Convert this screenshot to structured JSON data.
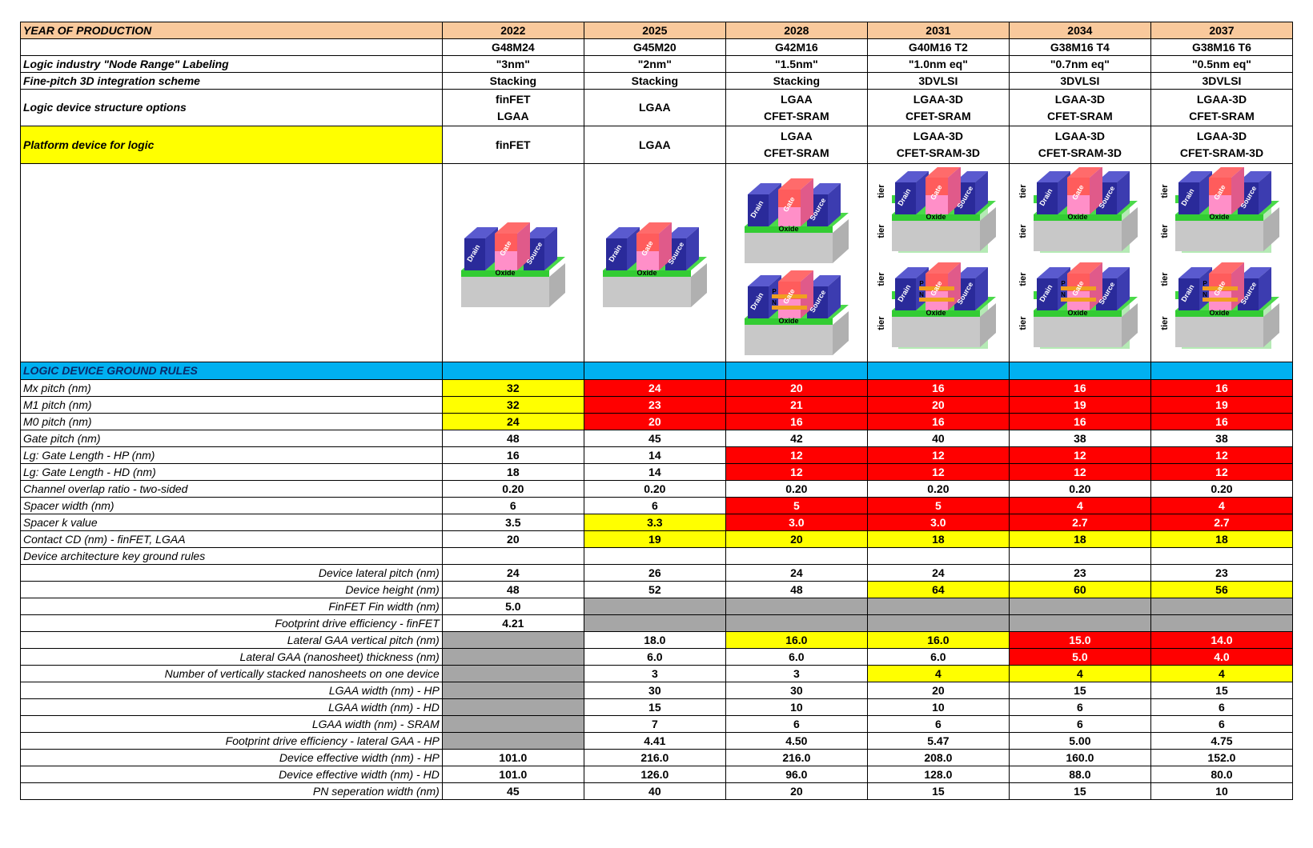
{
  "header": {
    "title": "YEAR OF PRODUCTION",
    "years": [
      "2022",
      "2025",
      "2028",
      "2031",
      "2034",
      "2037"
    ]
  },
  "top_rows": [
    {
      "label": "",
      "values": [
        "G48M24",
        "G45M20",
        "G42M16",
        "G40M16 T2",
        "G38M16 T4",
        "G38M16 T6"
      ]
    },
    {
      "label": "Logic industry \"Node Range\" Labeling",
      "values": [
        "\"3nm\"",
        "\"2nm\"",
        "\"1.5nm\"",
        "\"1.0nm eq\"",
        "\"0.7nm eq\"",
        "\"0.5nm eq\""
      ]
    },
    {
      "label": "Fine-pitch 3D integration scheme",
      "values": [
        "Stacking",
        "Stacking",
        "Stacking",
        "3DVLSI",
        "3DVLSI",
        "3DVLSI"
      ]
    },
    {
      "label": "Logic device structure options",
      "values": [
        [
          "finFET",
          "LGAA"
        ],
        [
          "LGAA"
        ],
        [
          "LGAA",
          "CFET-SRAM"
        ],
        [
          "LGAA-3D",
          "CFET-SRAM"
        ],
        [
          "LGAA-3D",
          "CFET-SRAM"
        ],
        [
          "LGAA-3D",
          "CFET-SRAM"
        ]
      ]
    },
    {
      "label": "Platform device for logic",
      "values": [
        [
          "finFET"
        ],
        [
          "LGAA"
        ],
        [
          "LGAA",
          "CFET-SRAM"
        ],
        [
          "LGAA-3D",
          "CFET-SRAM-3D"
        ],
        [
          "LGAA-3D",
          "CFET-SRAM-3D"
        ],
        [
          "LGAA-3D",
          "CFET-SRAM-3D"
        ]
      ]
    }
  ],
  "device_labels": {
    "drain": "Drain",
    "gate": "Gate",
    "source": "Source",
    "oxide": "Oxide",
    "tier": "tier",
    "p": "P",
    "n": "N"
  },
  "section_title": "LOGIC DEVICE GROUND RULES",
  "colors": {
    "header": "#f9c99c",
    "section": "#00b0f0",
    "yellow": "#ffff00",
    "red": "#ff0000",
    "gray": "#a6a6a6"
  },
  "rule_rows": [
    {
      "label": "Mx pitch (nm)",
      "align": "left",
      "values": [
        "32",
        "24",
        "20",
        "16",
        "16",
        "16"
      ],
      "colors": [
        "y",
        "r",
        "r",
        "r",
        "r",
        "r"
      ]
    },
    {
      "label": "M1 pitch (nm)",
      "align": "left",
      "values": [
        "32",
        "23",
        "21",
        "20",
        "19",
        "19"
      ],
      "colors": [
        "y",
        "r",
        "r",
        "r",
        "r",
        "r"
      ]
    },
    {
      "label": "M0 pitch (nm)",
      "align": "left",
      "values": [
        "24",
        "20",
        "16",
        "16",
        "16",
        "16"
      ],
      "colors": [
        "y",
        "r",
        "r",
        "r",
        "r",
        "r"
      ]
    },
    {
      "label": "Gate pitch (nm)",
      "align": "left",
      "values": [
        "48",
        "45",
        "42",
        "40",
        "38",
        "38"
      ],
      "colors": [
        "",
        "",
        "",
        "",
        "",
        ""
      ]
    },
    {
      "label": "Lg: Gate Length - HP (nm)",
      "align": "left",
      "values": [
        "16",
        "14",
        "12",
        "12",
        "12",
        "12"
      ],
      "colors": [
        "",
        "",
        "r",
        "r",
        "r",
        "r"
      ]
    },
    {
      "label": "Lg: Gate Length - HD (nm)",
      "align": "left",
      "values": [
        "18",
        "14",
        "12",
        "12",
        "12",
        "12"
      ],
      "colors": [
        "",
        "",
        "r",
        "r",
        "r",
        "r"
      ]
    },
    {
      "label": "Channel overlap ratio - two-sided",
      "align": "left",
      "values": [
        "0.20",
        "0.20",
        "0.20",
        "0.20",
        "0.20",
        "0.20"
      ],
      "colors": [
        "",
        "",
        "",
        "",
        "",
        ""
      ]
    },
    {
      "label": "Spacer width (nm)",
      "align": "left",
      "values": [
        "6",
        "6",
        "5",
        "5",
        "4",
        "4"
      ],
      "colors": [
        "",
        "",
        "r",
        "r",
        "r",
        "r"
      ]
    },
    {
      "label": "Spacer k value",
      "align": "left",
      "values": [
        "3.5",
        "3.3",
        "3.0",
        "3.0",
        "2.7",
        "2.7"
      ],
      "colors": [
        "",
        "y",
        "r",
        "r",
        "r",
        "r"
      ]
    },
    {
      "label": "Contact CD (nm) - finFET, LGAA",
      "align": "left",
      "values": [
        "20",
        "19",
        "20",
        "18",
        "18",
        "18"
      ],
      "colors": [
        "",
        "y",
        "y",
        "y",
        "y",
        "y"
      ]
    },
    {
      "label": "Device architecture key ground rules",
      "align": "left",
      "values": [
        "",
        "",
        "",
        "",
        "",
        ""
      ],
      "colors": [
        "",
        "",
        "",
        "",
        "",
        ""
      ]
    },
    {
      "label": "Device lateral pitch (nm)",
      "align": "right",
      "values": [
        "24",
        "26",
        "24",
        "24",
        "23",
        "23"
      ],
      "colors": [
        "",
        "",
        "",
        "",
        "",
        ""
      ]
    },
    {
      "label": "Device height (nm)",
      "align": "right",
      "values": [
        "48",
        "52",
        "48",
        "64",
        "60",
        "56"
      ],
      "colors": [
        "",
        "",
        "",
        "y",
        "y",
        "y"
      ]
    },
    {
      "label": "FinFET Fin width (nm)",
      "align": "right",
      "values": [
        "5.0",
        "",
        "",
        "",
        "",
        ""
      ],
      "colors": [
        "",
        "g",
        "g",
        "g",
        "g",
        "g"
      ]
    },
    {
      "label": "Footprint drive efficiency -  finFET",
      "align": "right",
      "values": [
        "4.21",
        "",
        "",
        "",
        "",
        ""
      ],
      "colors": [
        "",
        "g",
        "g",
        "g",
        "g",
        "g"
      ]
    },
    {
      "label": "Lateral GAA vertical pitch (nm)",
      "align": "right",
      "values": [
        "",
        "18.0",
        "16.0",
        "16.0",
        "15.0",
        "14.0"
      ],
      "colors": [
        "g",
        "",
        "y",
        "y",
        "r",
        "r"
      ]
    },
    {
      "label": "Lateral GAA (nanosheet) thickness (nm)",
      "align": "right",
      "values": [
        "",
        "6.0",
        "6.0",
        "6.0",
        "5.0",
        "4.0"
      ],
      "colors": [
        "g",
        "",
        "",
        "",
        "r",
        "r"
      ]
    },
    {
      "label": "Number of  vertically stacked nanosheets on one device",
      "align": "right",
      "values": [
        "",
        "3",
        "3",
        "4",
        "4",
        "4"
      ],
      "colors": [
        "g",
        "",
        "",
        "y",
        "y",
        "y"
      ]
    },
    {
      "label": "LGAA width (nm) - HP",
      "align": "right",
      "values": [
        "",
        "30",
        "30",
        "20",
        "15",
        "15"
      ],
      "colors": [
        "g",
        "",
        "",
        "",
        "",
        ""
      ]
    },
    {
      "label": "LGAA width (nm) - HD",
      "align": "right",
      "values": [
        "",
        "15",
        "10",
        "10",
        "6",
        "6"
      ],
      "colors": [
        "g",
        "",
        "",
        "",
        "",
        ""
      ]
    },
    {
      "label": "LGAA width (nm) - SRAM",
      "align": "right",
      "values": [
        "",
        "7",
        "6",
        "6",
        "6",
        "6"
      ],
      "colors": [
        "g",
        "",
        "",
        "",
        "",
        ""
      ]
    },
    {
      "label": "Footprint drive efficiency - lateral GAA - HP",
      "align": "right",
      "values": [
        "",
        "4.41",
        "4.50",
        "5.47",
        "5.00",
        "4.75"
      ],
      "colors": [
        "g",
        "",
        "",
        "",
        "",
        ""
      ]
    },
    {
      "label": "Device effective width (nm) - HP",
      "align": "right",
      "values": [
        "101.0",
        "216.0",
        "216.0",
        "208.0",
        "160.0",
        "152.0"
      ],
      "colors": [
        "",
        "",
        "",
        "",
        "",
        ""
      ]
    },
    {
      "label": "Device effective width (nm) - HD",
      "align": "right",
      "values": [
        "101.0",
        "126.0",
        "96.0",
        "128.0",
        "88.0",
        "80.0"
      ],
      "colors": [
        "",
        "",
        "",
        "",
        "",
        ""
      ]
    },
    {
      "label": "PN seperation width (nm)",
      "align": "right",
      "values": [
        "45",
        "40",
        "20",
        "15",
        "15",
        "10"
      ],
      "colors": [
        "",
        "",
        "",
        "",
        "",
        ""
      ]
    }
  ]
}
